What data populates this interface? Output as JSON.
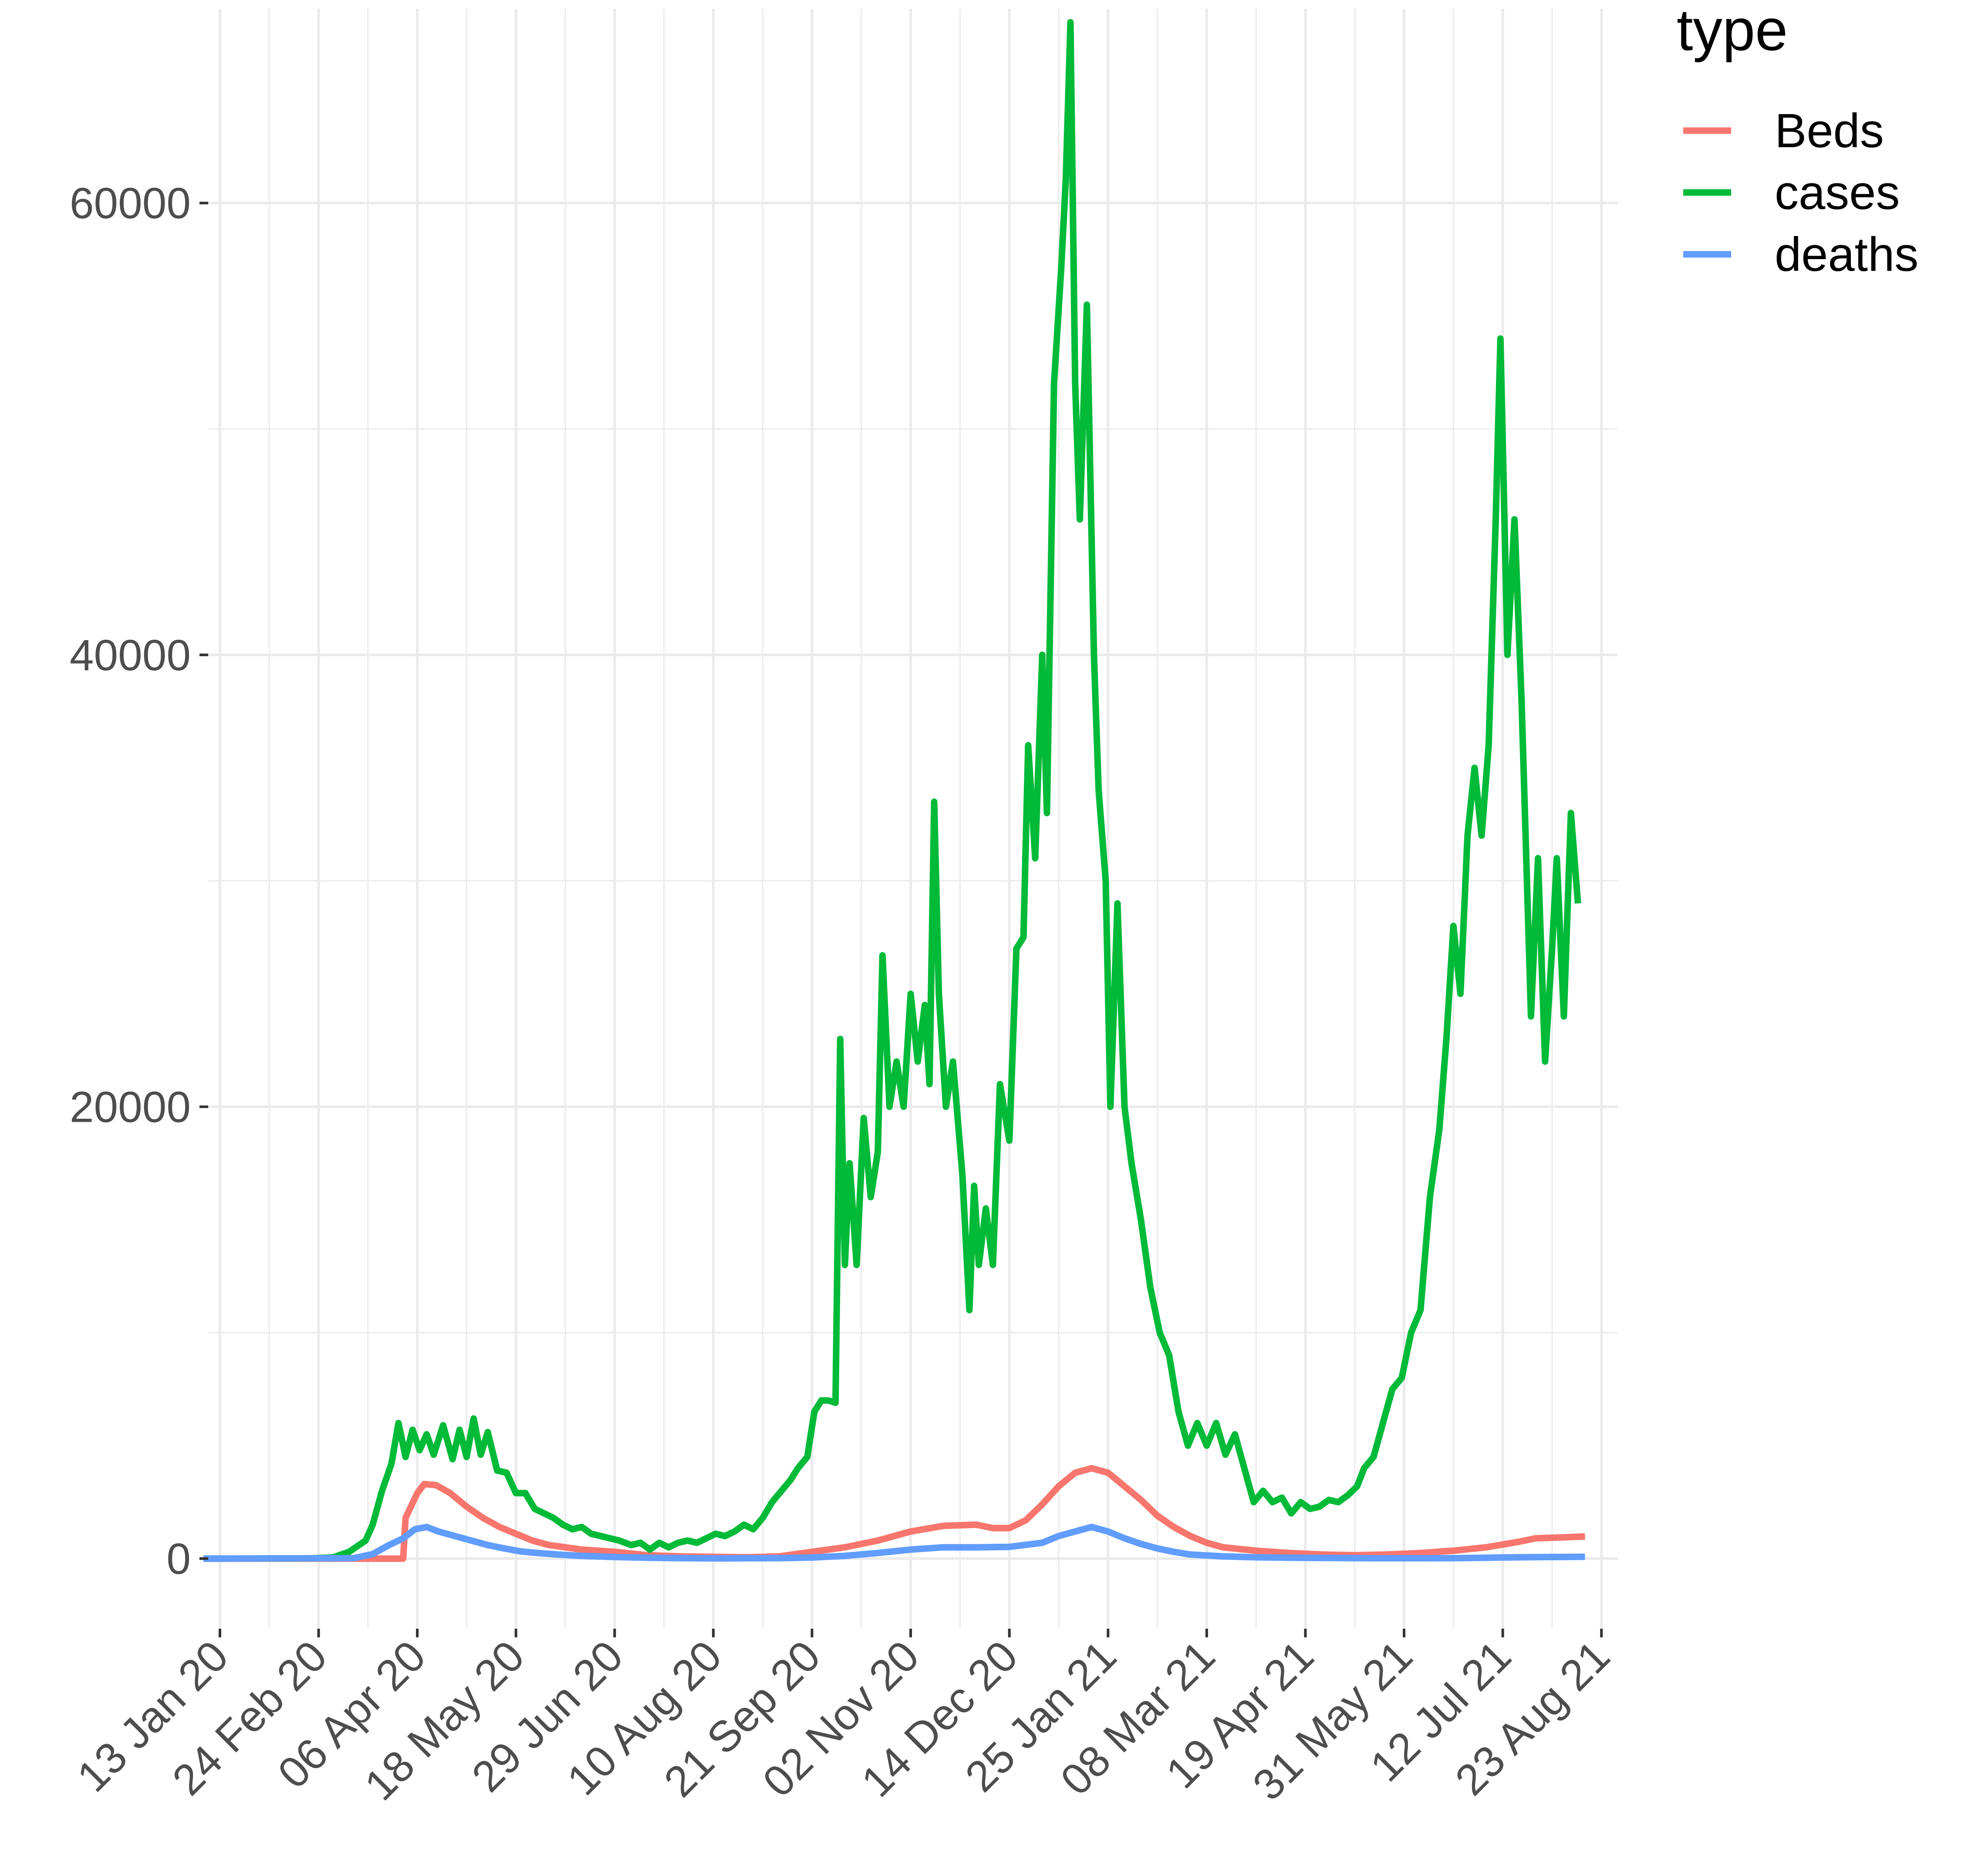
{
  "chart_data": {
    "type": "line",
    "title": "",
    "xlabel": "",
    "ylabel": "",
    "x_axis": {
      "type": "date",
      "range": [
        "2020-01-08",
        "2021-08-30"
      ],
      "tick_dates": [
        "2020-01-13",
        "2020-02-24",
        "2020-04-06",
        "2020-05-18",
        "2020-06-29",
        "2020-08-10",
        "2020-09-21",
        "2020-11-02",
        "2020-12-14",
        "2021-01-25",
        "2021-03-08",
        "2021-04-19",
        "2021-05-31",
        "2021-07-12",
        "2021-08-23"
      ],
      "tick_labels": [
        "13 Jan 20",
        "24 Feb 20",
        "06 Apr 20",
        "18 May 20",
        "29 Jun 20",
        "10 Aug 20",
        "21 Sep 20",
        "02 Nov 20",
        "14 Dec 20",
        "25 Jan 21",
        "08 Mar 21",
        "19 Apr 21",
        "31 May 21",
        "12 Jul 21",
        "23 Aug 21"
      ]
    },
    "y_axis": {
      "range": [
        -3100,
        68600
      ],
      "ticks": [
        0,
        20000,
        40000,
        60000
      ],
      "tick_labels": [
        "0",
        "20000",
        "40000",
        "60000"
      ]
    },
    "grid": true,
    "legend": {
      "title": "type",
      "placement": "right",
      "entries": [
        {
          "label": "Beds",
          "color": "#F8766D"
        },
        {
          "label": "cases",
          "color": "#00BA38"
        },
        {
          "label": "deaths",
          "color": "#619CFF"
        }
      ]
    },
    "series": [
      {
        "name": "Beds",
        "color": "#F8766D",
        "points": [
          [
            "2020-01-06",
            0
          ],
          [
            "2020-03-31",
            0
          ],
          [
            "2020-04-01",
            1800
          ],
          [
            "2020-04-06",
            2900
          ],
          [
            "2020-04-09",
            3300
          ],
          [
            "2020-04-14",
            3250
          ],
          [
            "2020-04-20",
            2900
          ],
          [
            "2020-04-27",
            2300
          ],
          [
            "2020-05-04",
            1800
          ],
          [
            "2020-05-11",
            1400
          ],
          [
            "2020-05-18",
            1100
          ],
          [
            "2020-05-25",
            800
          ],
          [
            "2020-06-01",
            600
          ],
          [
            "2020-06-15",
            400
          ],
          [
            "2020-06-29",
            300
          ],
          [
            "2020-07-13",
            150
          ],
          [
            "2020-07-27",
            100
          ],
          [
            "2020-08-10",
            80
          ],
          [
            "2020-08-24",
            60
          ],
          [
            "2020-09-07",
            100
          ],
          [
            "2020-09-21",
            300
          ],
          [
            "2020-10-05",
            500
          ],
          [
            "2020-10-19",
            800
          ],
          [
            "2020-11-02",
            1200
          ],
          [
            "2020-11-16",
            1450
          ],
          [
            "2020-11-30",
            1500
          ],
          [
            "2020-12-07",
            1350
          ],
          [
            "2020-12-14",
            1350
          ],
          [
            "2020-12-21",
            1700
          ],
          [
            "2020-12-28",
            2400
          ],
          [
            "2021-01-04",
            3200
          ],
          [
            "2021-01-11",
            3800
          ],
          [
            "2021-01-18",
            4000
          ],
          [
            "2021-01-25",
            3800
          ],
          [
            "2021-02-01",
            3200
          ],
          [
            "2021-02-08",
            2600
          ],
          [
            "2021-02-15",
            1900
          ],
          [
            "2021-02-22",
            1400
          ],
          [
            "2021-03-01",
            1000
          ],
          [
            "2021-03-08",
            700
          ],
          [
            "2021-03-15",
            500
          ],
          [
            "2021-03-29",
            350
          ],
          [
            "2021-04-12",
            250
          ],
          [
            "2021-04-26",
            180
          ],
          [
            "2021-05-10",
            150
          ],
          [
            "2021-05-24",
            180
          ],
          [
            "2021-06-07",
            250
          ],
          [
            "2021-06-21",
            350
          ],
          [
            "2021-07-05",
            500
          ],
          [
            "2021-07-19",
            750
          ],
          [
            "2021-07-26",
            900
          ],
          [
            "2021-08-09",
            950
          ],
          [
            "2021-08-16",
            980
          ]
        ]
      },
      {
        "name": "cases",
        "color": "#00BA38",
        "points": [
          [
            "2020-01-06",
            0
          ],
          [
            "2020-02-20",
            10
          ],
          [
            "2020-03-01",
            50
          ],
          [
            "2020-03-08",
            300
          ],
          [
            "2020-03-15",
            800
          ],
          [
            "2020-03-18",
            1500
          ],
          [
            "2020-03-22",
            3000
          ],
          [
            "2020-03-26",
            4200
          ],
          [
            "2020-03-29",
            6000
          ],
          [
            "2020-04-01",
            4500
          ],
          [
            "2020-04-04",
            5700
          ],
          [
            "2020-04-07",
            4800
          ],
          [
            "2020-04-10",
            5500
          ],
          [
            "2020-04-13",
            4600
          ],
          [
            "2020-04-17",
            5900
          ],
          [
            "2020-04-21",
            4400
          ],
          [
            "2020-04-24",
            5700
          ],
          [
            "2020-04-27",
            4500
          ],
          [
            "2020-04-30",
            6200
          ],
          [
            "2020-05-03",
            4600
          ],
          [
            "2020-05-06",
            5600
          ],
          [
            "2020-05-10",
            3900
          ],
          [
            "2020-05-14",
            3800
          ],
          [
            "2020-05-18",
            2900
          ],
          [
            "2020-05-22",
            2900
          ],
          [
            "2020-05-26",
            2200
          ],
          [
            "2020-05-30",
            2000
          ],
          [
            "2020-06-03",
            1800
          ],
          [
            "2020-06-07",
            1500
          ],
          [
            "2020-06-11",
            1300
          ],
          [
            "2020-06-15",
            1400
          ],
          [
            "2020-06-19",
            1100
          ],
          [
            "2020-06-23",
            1000
          ],
          [
            "2020-06-27",
            900
          ],
          [
            "2020-07-01",
            800
          ],
          [
            "2020-07-06",
            600
          ],
          [
            "2020-07-10",
            700
          ],
          [
            "2020-07-14",
            400
          ],
          [
            "2020-07-18",
            700
          ],
          [
            "2020-07-22",
            500
          ],
          [
            "2020-07-26",
            700
          ],
          [
            "2020-07-30",
            800
          ],
          [
            "2020-08-03",
            700
          ],
          [
            "2020-08-07",
            900
          ],
          [
            "2020-08-11",
            1100
          ],
          [
            "2020-08-15",
            1000
          ],
          [
            "2020-08-19",
            1200
          ],
          [
            "2020-08-23",
            1500
          ],
          [
            "2020-08-27",
            1300
          ],
          [
            "2020-08-31",
            1800
          ],
          [
            "2020-09-04",
            2500
          ],
          [
            "2020-09-08",
            3000
          ],
          [
            "2020-09-12",
            3500
          ],
          [
            "2020-09-15",
            4000
          ],
          [
            "2020-09-19",
            4500
          ],
          [
            "2020-09-22",
            6500
          ],
          [
            "2020-09-25",
            7000
          ],
          [
            "2020-09-28",
            7000
          ],
          [
            "2020-10-01",
            6900
          ],
          [
            "2020-10-03",
            23000
          ],
          [
            "2020-10-05",
            13000
          ],
          [
            "2020-10-07",
            17500
          ],
          [
            "2020-10-10",
            13000
          ],
          [
            "2020-10-13",
            19500
          ],
          [
            "2020-10-16",
            16000
          ],
          [
            "2020-10-19",
            18000
          ],
          [
            "2020-10-21",
            26700
          ],
          [
            "2020-10-24",
            20000
          ],
          [
            "2020-10-27",
            22000
          ],
          [
            "2020-10-30",
            20000
          ],
          [
            "2020-11-02",
            25000
          ],
          [
            "2020-11-05",
            22000
          ],
          [
            "2020-11-08",
            24500
          ],
          [
            "2020-11-10",
            21000
          ],
          [
            "2020-11-12",
            33500
          ],
          [
            "2020-11-14",
            25000
          ],
          [
            "2020-11-17",
            20000
          ],
          [
            "2020-11-20",
            22000
          ],
          [
            "2020-11-24",
            17000
          ],
          [
            "2020-11-27",
            11000
          ],
          [
            "2020-11-29",
            16500
          ],
          [
            "2020-12-01",
            13000
          ],
          [
            "2020-12-04",
            15500
          ],
          [
            "2020-12-07",
            13000
          ],
          [
            "2020-12-10",
            21000
          ],
          [
            "2020-12-14",
            18500
          ],
          [
            "2020-12-17",
            27000
          ],
          [
            "2020-12-20",
            27500
          ],
          [
            "2020-12-22",
            36000
          ],
          [
            "2020-12-25",
            31000
          ],
          [
            "2020-12-28",
            40000
          ],
          [
            "2020-12-30",
            33000
          ],
          [
            "2021-01-02",
            52000
          ],
          [
            "2021-01-05",
            57000
          ],
          [
            "2021-01-07",
            61000
          ],
          [
            "2021-01-09",
            68000
          ],
          [
            "2021-01-11",
            52000
          ],
          [
            "2021-01-13",
            46000
          ],
          [
            "2021-01-16",
            55500
          ],
          [
            "2021-01-19",
            40000
          ],
          [
            "2021-01-21",
            34000
          ],
          [
            "2021-01-24",
            30000
          ],
          [
            "2021-01-26",
            20000
          ],
          [
            "2021-01-29",
            29000
          ],
          [
            "2021-02-01",
            20000
          ],
          [
            "2021-02-04",
            17500
          ],
          [
            "2021-02-08",
            15000
          ],
          [
            "2021-02-12",
            12000
          ],
          [
            "2021-02-16",
            10000
          ],
          [
            "2021-02-20",
            9000
          ],
          [
            "2021-02-24",
            6500
          ],
          [
            "2021-02-28",
            5000
          ],
          [
            "2021-03-04",
            6000
          ],
          [
            "2021-03-08",
            5000
          ],
          [
            "2021-03-12",
            6000
          ],
          [
            "2021-03-16",
            4600
          ],
          [
            "2021-03-20",
            5500
          ],
          [
            "2021-03-24",
            4000
          ],
          [
            "2021-03-28",
            2500
          ],
          [
            "2021-04-01",
            3000
          ],
          [
            "2021-04-05",
            2500
          ],
          [
            "2021-04-09",
            2700
          ],
          [
            "2021-04-13",
            2000
          ],
          [
            "2021-04-17",
            2500
          ],
          [
            "2021-04-21",
            2200
          ],
          [
            "2021-04-25",
            2300
          ],
          [
            "2021-04-29",
            2600
          ],
          [
            "2021-05-03",
            2500
          ],
          [
            "2021-05-07",
            2800
          ],
          [
            "2021-05-11",
            3200
          ],
          [
            "2021-05-14",
            4000
          ],
          [
            "2021-05-18",
            4500
          ],
          [
            "2021-05-22",
            6000
          ],
          [
            "2021-05-26",
            7500
          ],
          [
            "2021-05-30",
            8000
          ],
          [
            "2021-06-03",
            10000
          ],
          [
            "2021-06-07",
            11000
          ],
          [
            "2021-06-11",
            16000
          ],
          [
            "2021-06-15",
            19000
          ],
          [
            "2021-06-18",
            23000
          ],
          [
            "2021-06-21",
            28000
          ],
          [
            "2021-06-24",
            25000
          ],
          [
            "2021-06-27",
            32000
          ],
          [
            "2021-06-30",
            35000
          ],
          [
            "2021-07-03",
            32000
          ],
          [
            "2021-07-06",
            36000
          ],
          [
            "2021-07-09",
            46000
          ],
          [
            "2021-07-11",
            54000
          ],
          [
            "2021-07-14",
            40000
          ],
          [
            "2021-07-17",
            46000
          ],
          [
            "2021-07-20",
            38000
          ],
          [
            "2021-07-24",
            24000
          ],
          [
            "2021-07-27",
            31000
          ],
          [
            "2021-07-30",
            22000
          ],
          [
            "2021-08-02",
            27000
          ],
          [
            "2021-08-04",
            31000
          ],
          [
            "2021-08-07",
            24000
          ],
          [
            "2021-08-10",
            33000
          ],
          [
            "2021-08-13",
            29000
          ]
        ]
      },
      {
        "name": "deaths",
        "color": "#619CFF",
        "points": [
          [
            "2020-01-06",
            0
          ],
          [
            "2020-03-10",
            20
          ],
          [
            "2020-03-18",
            200
          ],
          [
            "2020-03-25",
            600
          ],
          [
            "2020-03-31",
            900
          ],
          [
            "2020-04-05",
            1300
          ],
          [
            "2020-04-10",
            1400
          ],
          [
            "2020-04-15",
            1200
          ],
          [
            "2020-04-22",
            1000
          ],
          [
            "2020-04-29",
            800
          ],
          [
            "2020-05-06",
            600
          ],
          [
            "2020-05-13",
            450
          ],
          [
            "2020-05-20",
            320
          ],
          [
            "2020-05-27",
            250
          ],
          [
            "2020-06-05",
            180
          ],
          [
            "2020-06-15",
            120
          ],
          [
            "2020-06-29",
            70
          ],
          [
            "2020-07-13",
            40
          ],
          [
            "2020-07-27",
            20
          ],
          [
            "2020-08-10",
            10
          ],
          [
            "2020-08-24",
            15
          ],
          [
            "2020-09-07",
            20
          ],
          [
            "2020-09-21",
            50
          ],
          [
            "2020-10-05",
            120
          ],
          [
            "2020-10-19",
            250
          ],
          [
            "2020-11-02",
            400
          ],
          [
            "2020-11-16",
            500
          ],
          [
            "2020-11-30",
            500
          ],
          [
            "2020-12-14",
            520
          ],
          [
            "2020-12-28",
            700
          ],
          [
            "2021-01-04",
            1000
          ],
          [
            "2021-01-11",
            1200
          ],
          [
            "2021-01-18",
            1400
          ],
          [
            "2021-01-25",
            1200
          ],
          [
            "2021-02-01",
            900
          ],
          [
            "2021-02-08",
            650
          ],
          [
            "2021-02-15",
            450
          ],
          [
            "2021-02-22",
            300
          ],
          [
            "2021-03-01",
            180
          ],
          [
            "2021-03-15",
            100
          ],
          [
            "2021-03-29",
            60
          ],
          [
            "2021-04-12",
            40
          ],
          [
            "2021-04-26",
            30
          ],
          [
            "2021-05-10",
            20
          ],
          [
            "2021-05-24",
            15
          ],
          [
            "2021-06-07",
            15
          ],
          [
            "2021-06-21",
            20
          ],
          [
            "2021-07-05",
            40
          ],
          [
            "2021-07-19",
            60
          ],
          [
            "2021-08-02",
            70
          ],
          [
            "2021-08-16",
            80
          ]
        ]
      }
    ]
  }
}
